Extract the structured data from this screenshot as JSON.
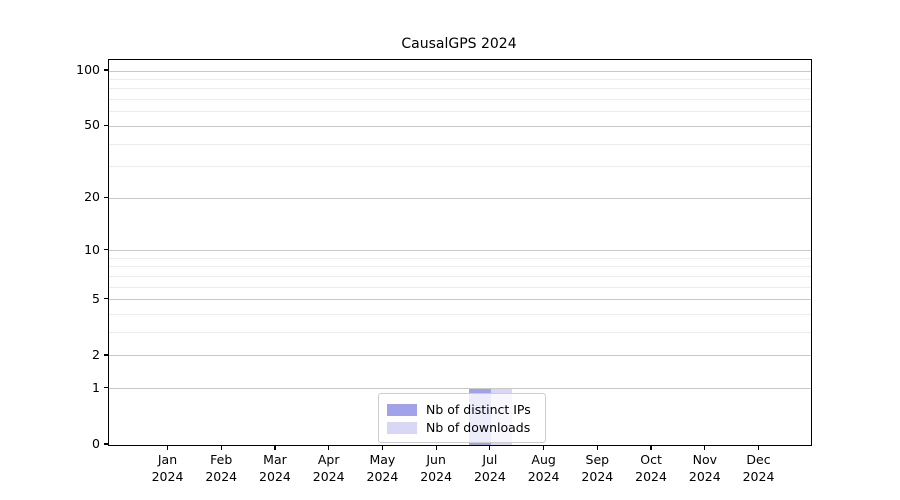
{
  "chart_data": {
    "type": "bar",
    "title": "CausalGPS 2024",
    "x": {
      "months": [
        "Jan",
        "Feb",
        "Mar",
        "Apr",
        "May",
        "Jun",
        "Jul",
        "Aug",
        "Sep",
        "Oct",
        "Nov",
        "Dec"
      ],
      "year": "2024"
    },
    "series": [
      {
        "name": "Nb of distinct IPs",
        "color": "#a2a2eb",
        "values": [
          0,
          0,
          0,
          0,
          0,
          0,
          1,
          0,
          0,
          0,
          0,
          0
        ]
      },
      {
        "name": "Nb of downloads",
        "color": "#d8d8f6",
        "values": [
          0,
          0,
          0,
          0,
          0,
          0,
          1,
          0,
          0,
          0,
          0,
          0
        ]
      }
    ],
    "y_axis": {
      "scale": "log1p",
      "major_ticks": [
        0,
        1,
        2,
        5,
        10,
        20,
        50,
        100
      ],
      "minor_ticks": [
        3,
        4,
        6,
        7,
        8,
        9,
        30,
        40,
        60,
        70,
        80,
        90
      ],
      "ylim": [
        0,
        115
      ]
    },
    "legend": {
      "position": "lower center"
    },
    "colors": {
      "grid_major": "#c9c9c9",
      "grid_minor": "#ececec",
      "axis": "#000000",
      "legend_border": "#cccccc",
      "text": "#000000"
    }
  }
}
